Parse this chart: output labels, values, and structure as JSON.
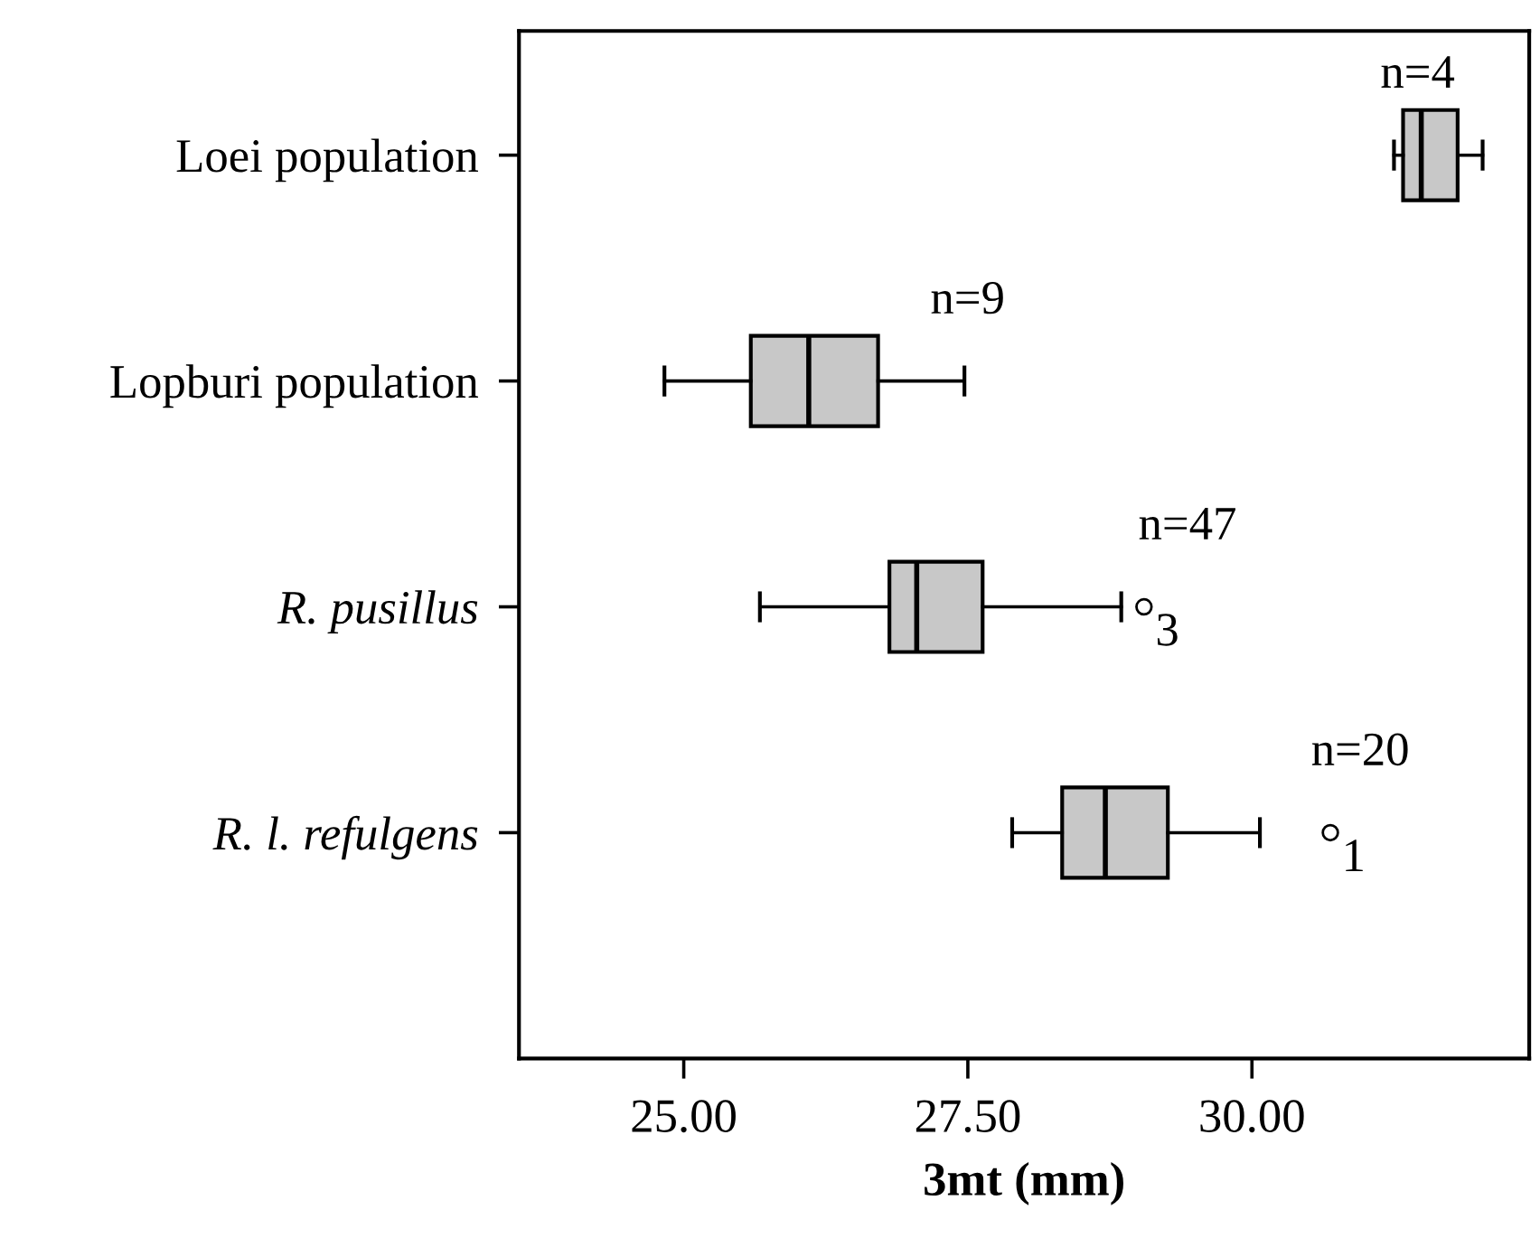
{
  "chart_data": {
    "type": "box",
    "orientation": "horizontal",
    "xlabel": "3mt (mm)",
    "categories": [
      "Loei population",
      "Lopburi population",
      "R. pusillus",
      "R. l. refulgens"
    ],
    "boxes": [
      {
        "low": 31.25,
        "q1": 31.33,
        "median": 31.49,
        "q3": 31.81,
        "high": 32.03
      },
      {
        "low": 24.83,
        "q1": 25.59,
        "median": 26.1,
        "q3": 26.71,
        "high": 27.47
      },
      {
        "low": 25.67,
        "q1": 26.81,
        "median": 27.05,
        "q3": 27.63,
        "high": 28.85,
        "outliers": [
          29.05
        ]
      },
      {
        "low": 27.89,
        "q1": 28.33,
        "median": 28.71,
        "q3": 29.26,
        "high": 30.07,
        "outliers": [
          30.69
        ]
      }
    ],
    "color": "#c8c8c8",
    "xlim": [
      23.55,
      32.44
    ],
    "xticks": [
      {
        "value": 25,
        "label": "25.00"
      },
      {
        "value": 27.5,
        "label": "27.50"
      },
      {
        "value": 30,
        "label": "30.00"
      }
    ],
    "annotations": [
      "n=4",
      "n=9",
      "n=47",
      "3",
      "n=20",
      "1"
    ],
    "grid": false
  }
}
